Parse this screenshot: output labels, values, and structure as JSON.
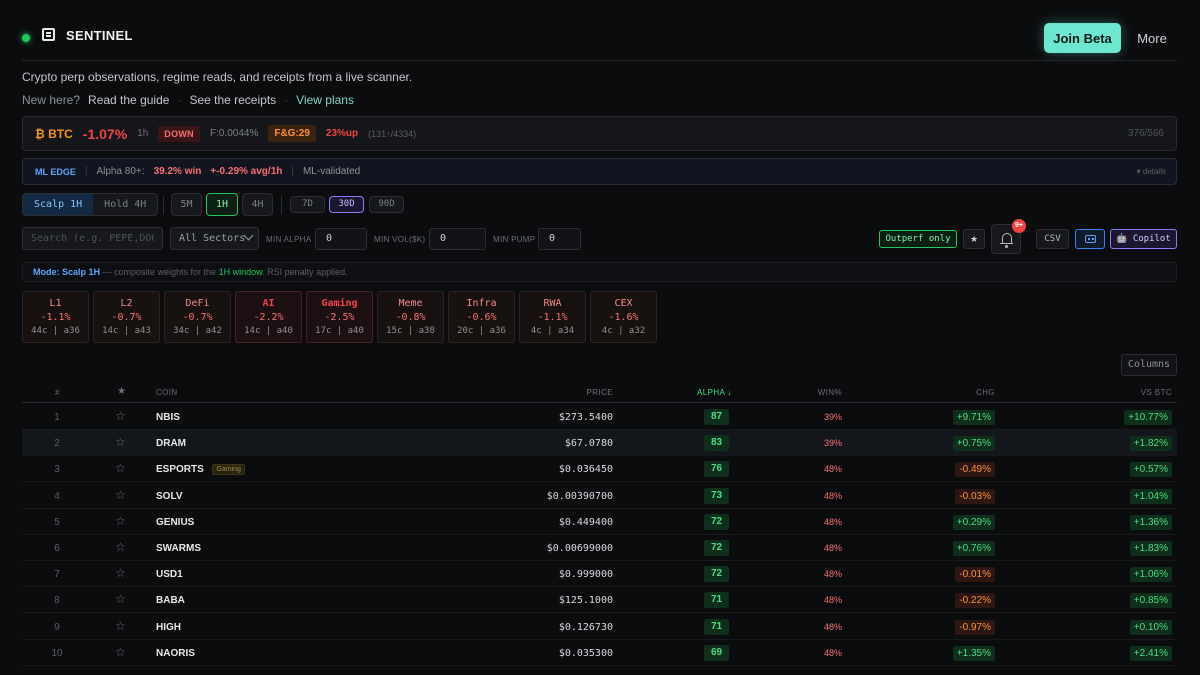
{
  "header": {
    "brand": "SENTINEL",
    "join_label": "Join Beta",
    "more_label": "More"
  },
  "tagline": "Crypto perp observations, regime reads, and receipts from a live scanner.",
  "links": {
    "prefix": "New here?",
    "guide": "Read the guide",
    "receipts": "See the receipts",
    "plans": "View plans",
    "sep": "·"
  },
  "ticker": {
    "symbol": "₿ BTC",
    "change": "-1.07%",
    "timeframe": "1h",
    "trend": "DOWN",
    "funding": "F:0.0044%",
    "fear_greed": "F&G:29",
    "up_pct": "23%up",
    "up_count": "(131↑/4334)",
    "right_count": "376/566"
  },
  "ml_edge": {
    "label": "ML EDGE",
    "alpha": "Alpha 80+:",
    "win": "39.2% win",
    "avg": "+-0.29% avg/1h",
    "validated": "ML-validated",
    "details": "▾ details",
    "sep": "|"
  },
  "modes": {
    "scalp": "Scalp 1H",
    "hold": "Hold 4H"
  },
  "timeframes": [
    "5M",
    "1H",
    "4H"
  ],
  "windows": [
    "7D",
    "30D",
    "90D"
  ],
  "filters": {
    "search_placeholder": "Search (e.g. PEPE,DOGE)",
    "sectors": "All Sectors",
    "min_alpha_label": "MIN ALPHA",
    "min_alpha": "0",
    "min_vol_label": "MIN VOL($K)",
    "min_vol": "0",
    "min_pump_label": "MIN PUMP",
    "min_pump": "0",
    "outperf": "Outperf only",
    "star": "★",
    "bell_badge": "9+",
    "csv": "CSV",
    "copilot": "🤖 Copilot"
  },
  "mode_bar": {
    "mode": "Mode: Scalp 1H",
    "text1": " — composite weights for the ",
    "window": "1H window",
    "text2": ". RSI penalty applied."
  },
  "sectors": [
    {
      "name": "L1",
      "pct": "-1.1%",
      "counts": "44c | a36"
    },
    {
      "name": "L2",
      "pct": "-0.7%",
      "counts": "14c | a43"
    },
    {
      "name": "DeFi",
      "pct": "-0.7%",
      "counts": "34c | a42"
    },
    {
      "name": "AI",
      "pct": "-2.2%",
      "counts": "14c | a40"
    },
    {
      "name": "Gaming",
      "pct": "-2.5%",
      "counts": "17c | a40"
    },
    {
      "name": "Meme",
      "pct": "-0.8%",
      "counts": "15c | a38"
    },
    {
      "name": "Infra",
      "pct": "-0.6%",
      "counts": "20c | a36"
    },
    {
      "name": "RWA",
      "pct": "-1.1%",
      "counts": "4c | a34"
    },
    {
      "name": "CEX",
      "pct": "-1.6%",
      "counts": "4c | a32"
    }
  ],
  "columns_label": "Columns",
  "table": {
    "headers": {
      "num": "#",
      "star": "★",
      "coin": "COIN",
      "price": "PRICE",
      "alpha": "ALPHA ↓",
      "win": "WIN%",
      "chg": "CHG",
      "vs": "VS BTC"
    },
    "rows": [
      {
        "n": "1",
        "coin": "NBIS",
        "tag": "",
        "price": "$273.5400",
        "alpha": "87",
        "win": "39%",
        "chg": "+9.71%",
        "vs": "+10.77%"
      },
      {
        "n": "2",
        "coin": "DRAM",
        "tag": "",
        "price": "$67.0780",
        "alpha": "83",
        "win": "39%",
        "chg": "+0.75%",
        "vs": "+1.82%"
      },
      {
        "n": "3",
        "coin": "ESPORTS",
        "tag": "Gaming",
        "price": "$0.036450",
        "alpha": "76",
        "win": "48%",
        "chg": "-0.49%",
        "vs": "+0.57%"
      },
      {
        "n": "4",
        "coin": "SOLV",
        "tag": "",
        "price": "$0.00390700",
        "alpha": "73",
        "win": "48%",
        "chg": "-0.03%",
        "vs": "+1.04%"
      },
      {
        "n": "5",
        "coin": "GENIUS",
        "tag": "",
        "price": "$0.449400",
        "alpha": "72",
        "win": "48%",
        "chg": "+0.29%",
        "vs": "+1.36%"
      },
      {
        "n": "6",
        "coin": "SWARMS",
        "tag": "",
        "price": "$0.00699000",
        "alpha": "72",
        "win": "48%",
        "chg": "+0.76%",
        "vs": "+1.83%"
      },
      {
        "n": "7",
        "coin": "USD1",
        "tag": "",
        "price": "$0.999000",
        "alpha": "72",
        "win": "48%",
        "chg": "-0.01%",
        "vs": "+1.06%"
      },
      {
        "n": "8",
        "coin": "BABA",
        "tag": "",
        "price": "$125.1000",
        "alpha": "71",
        "win": "48%",
        "chg": "-0.22%",
        "vs": "+0.85%"
      },
      {
        "n": "9",
        "coin": "HIGH",
        "tag": "",
        "price": "$0.126730",
        "alpha": "71",
        "win": "48%",
        "chg": "-0.97%",
        "vs": "+0.10%"
      },
      {
        "n": "10",
        "coin": "NAORIS",
        "tag": "",
        "price": "$0.035300",
        "alpha": "69",
        "win": "48%",
        "chg": "+1.35%",
        "vs": "+2.41%"
      }
    ]
  }
}
